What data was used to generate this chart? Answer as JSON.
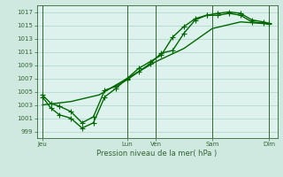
{
  "background_color": "#cfe8e0",
  "plot_bg_color": "#ddf2ec",
  "grid_color": "#aad4cc",
  "line_color": "#006600",
  "xlabel": "Pression niveau de la mer( hPa )",
  "ylim": [
    998,
    1018
  ],
  "yticks": [
    999,
    1001,
    1003,
    1005,
    1007,
    1009,
    1011,
    1013,
    1015,
    1017
  ],
  "x_day_labels": [
    "Jeu",
    "Lun",
    "Ven",
    "Sam",
    "Dim"
  ],
  "x_day_positions": [
    0,
    3,
    4,
    6,
    8
  ],
  "line1_x": [
    0,
    0.3,
    0.6,
    1.0,
    1.4,
    1.8,
    2.2,
    2.6,
    3.0,
    3.4,
    3.8,
    4.2,
    4.6,
    5.0,
    5.4,
    5.8,
    6.2,
    6.6,
    7.0,
    7.4,
    7.8,
    8.0
  ],
  "line1_y": [
    1004.5,
    1003.2,
    1002.8,
    1002.0,
    1000.3,
    1001.2,
    1005.2,
    1005.8,
    1006.8,
    1008.0,
    1009.2,
    1010.8,
    1011.2,
    1013.8,
    1015.8,
    1016.5,
    1016.8,
    1017.0,
    1016.8,
    1015.8,
    1015.5,
    1015.3
  ],
  "line2_x": [
    0,
    0.3,
    0.6,
    1.0,
    1.4,
    1.8,
    2.2,
    2.6,
    3.0,
    3.4,
    3.8,
    4.2,
    4.6,
    5.0,
    5.4,
    5.8,
    6.2,
    6.6,
    7.0,
    7.4,
    7.8,
    8.0
  ],
  "line2_y": [
    1004.2,
    1002.5,
    1001.5,
    1001.0,
    999.5,
    1000.3,
    1004.2,
    1005.5,
    1007.0,
    1008.5,
    1009.5,
    1010.5,
    1013.2,
    1014.8,
    1016.0,
    1016.5,
    1016.5,
    1016.8,
    1016.5,
    1015.5,
    1015.3,
    1015.2
  ],
  "line3_x": [
    0,
    1,
    2,
    3,
    4,
    5,
    6,
    7,
    8
  ],
  "line3_y": [
    1003.0,
    1003.5,
    1004.5,
    1007.0,
    1009.5,
    1011.5,
    1014.5,
    1015.5,
    1015.2
  ],
  "vline_positions": [
    0,
    3,
    4,
    6,
    8
  ],
  "marker_size": 3,
  "linewidth": 1.0,
  "figsize": [
    3.2,
    2.0
  ],
  "dpi": 100
}
